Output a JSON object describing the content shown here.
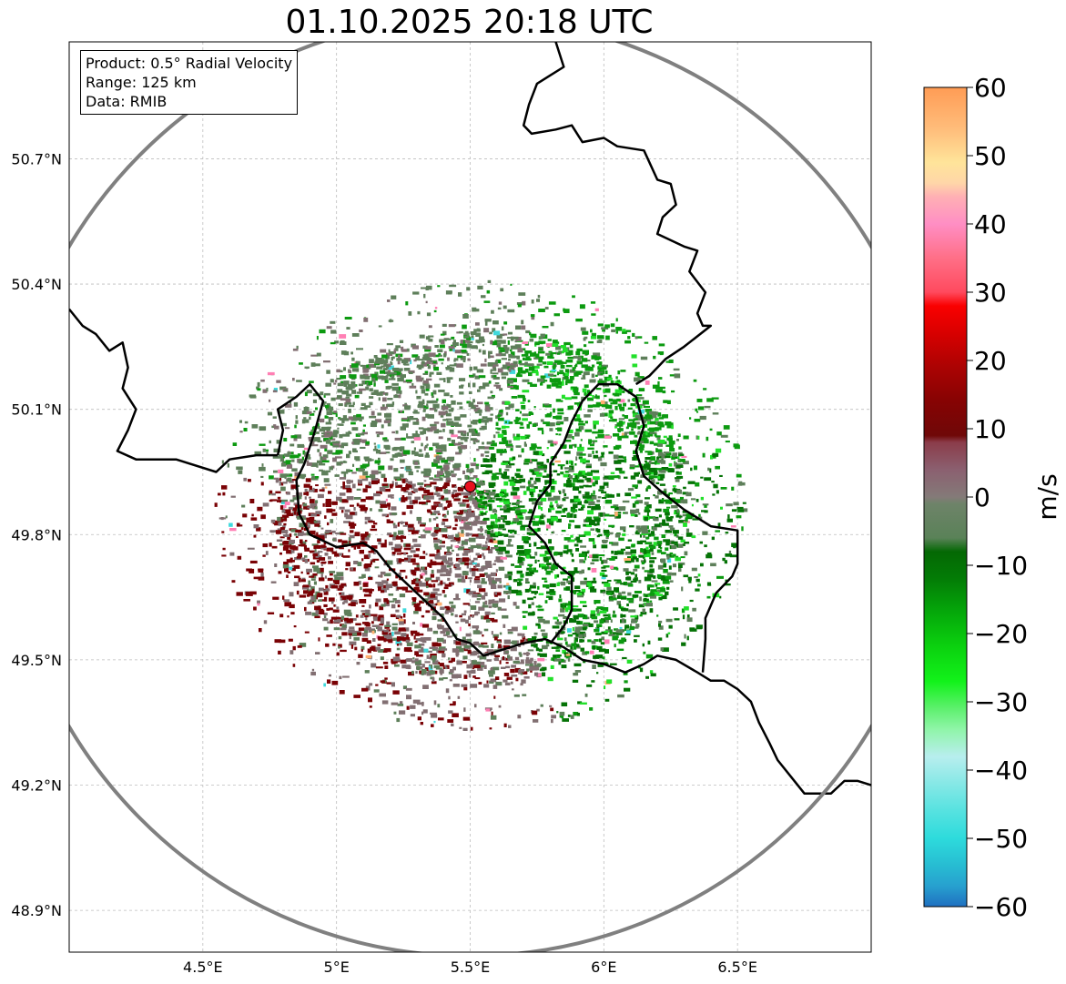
{
  "title": "01.10.2025 20:18 UTC",
  "info": {
    "product": "Product: 0.5° Radial Velocity",
    "range": "Range: 125 km",
    "data": "Data: RMIB"
  },
  "axes": {
    "lat_labels": [
      "50.7°N",
      "50.4°N",
      "50.1°N",
      "49.8°N",
      "49.5°N",
      "49.2°N",
      "48.9°N"
    ],
    "lat_values": [
      50.7,
      50.4,
      50.1,
      49.8,
      49.5,
      49.2,
      48.9
    ],
    "lon_labels": [
      "4.5°E",
      "5°E",
      "5.5°E",
      "6°E",
      "6.5°E"
    ],
    "lon_values": [
      4.5,
      5.0,
      5.5,
      6.0,
      6.5
    ],
    "lon_range": [
      4.0,
      7.0
    ],
    "lat_range": [
      48.8,
      50.98
    ]
  },
  "radar": {
    "lon": 5.5,
    "lat": 49.915,
    "range_km": 125,
    "marker_color": "#e8101e",
    "ring_color": "#808080"
  },
  "colorbar": {
    "unit": "m/s",
    "ticks": [
      "60",
      "50",
      "40",
      "30",
      "20",
      "10",
      "0",
      "−10",
      "−20",
      "−30",
      "−40",
      "−50",
      "−60"
    ],
    "tick_values": [
      60,
      50,
      40,
      30,
      20,
      10,
      0,
      -10,
      -20,
      -30,
      -40,
      -50,
      -60
    ],
    "range": [
      -60,
      60
    ],
    "stops": [
      {
        "v": -60,
        "c": "#1f6fc0"
      },
      {
        "v": -57,
        "c": "#27a0cf"
      },
      {
        "v": -54,
        "c": "#27bcd2"
      },
      {
        "v": -50,
        "c": "#2ddbdc"
      },
      {
        "v": -46,
        "c": "#56e2e0"
      },
      {
        "v": -42,
        "c": "#86e8e6"
      },
      {
        "v": -38,
        "c": "#b8eeee"
      },
      {
        "v": -34,
        "c": "#8ff5a8"
      },
      {
        "v": -31,
        "c": "#5ef06e"
      },
      {
        "v": -27,
        "c": "#12f21a"
      },
      {
        "v": -22,
        "c": "#0bd20f"
      },
      {
        "v": -17,
        "c": "#05a90a"
      },
      {
        "v": -12,
        "c": "#037c06"
      },
      {
        "v": -8,
        "c": "#046804"
      },
      {
        "v": -6,
        "c": "#5a8258"
      },
      {
        "v": -1,
        "c": "#6e8369"
      },
      {
        "v": 0,
        "c": "#847a78"
      },
      {
        "v": 4,
        "c": "#8b6070"
      },
      {
        "v": 8,
        "c": "#8b3c4a"
      },
      {
        "v": 9,
        "c": "#6f0808"
      },
      {
        "v": 14,
        "c": "#860303"
      },
      {
        "v": 19,
        "c": "#ab0303"
      },
      {
        "v": 24,
        "c": "#d80000"
      },
      {
        "v": 28,
        "c": "#fa0000"
      },
      {
        "v": 30,
        "c": "#ff4a5e"
      },
      {
        "v": 35,
        "c": "#ff6f87"
      },
      {
        "v": 40,
        "c": "#ff8ec4"
      },
      {
        "v": 44,
        "c": "#ffb0b4"
      },
      {
        "v": 46,
        "c": "#ffd6a8"
      },
      {
        "v": 49,
        "c": "#ffe49a"
      },
      {
        "v": 54,
        "c": "#ffbc7a"
      },
      {
        "v": 60,
        "c": "#ff9c55"
      }
    ]
  },
  "echo_colors": {
    "grey_green": "#5e7f5a",
    "grey_mauve": "#826f72",
    "dark_red": "#7a0205",
    "green": "#0c9a10",
    "dark_green": "#057306",
    "bright_green": "#22e02a",
    "pink": "#ff7fb4",
    "cyan": "#3fd9dc",
    "orange": "#ffb070"
  },
  "borders": {
    "color": "#000000",
    "lines": [
      [
        [
          4.0,
          50.34
        ],
        [
          4.05,
          50.3
        ],
        [
          4.1,
          50.28
        ],
        [
          4.15,
          50.24
        ],
        [
          4.2,
          50.26
        ],
        [
          4.22,
          50.2
        ],
        [
          4.2,
          50.15
        ],
        [
          4.25,
          50.1
        ],
        [
          4.22,
          50.05
        ],
        [
          4.18,
          50.0
        ],
        [
          4.25,
          49.98
        ],
        [
          4.4,
          49.98
        ],
        [
          4.55,
          49.95
        ],
        [
          4.6,
          49.98
        ],
        [
          4.7,
          49.99
        ],
        [
          4.78,
          49.99
        ]
      ],
      [
        [
          4.78,
          49.99
        ],
        [
          4.8,
          50.05
        ],
        [
          4.78,
          50.1
        ],
        [
          4.85,
          50.13
        ],
        [
          4.9,
          50.16
        ],
        [
          4.95,
          50.12
        ],
        [
          4.92,
          50.05
        ],
        [
          4.88,
          49.97
        ],
        [
          4.85,
          49.93
        ],
        [
          4.86,
          49.85
        ],
        [
          4.9,
          49.8
        ],
        [
          5.0,
          49.77
        ],
        [
          5.1,
          49.78
        ],
        [
          5.15,
          49.76
        ],
        [
          5.2,
          49.72
        ],
        [
          5.25,
          49.69
        ],
        [
          5.3,
          49.66
        ],
        [
          5.35,
          49.63
        ],
        [
          5.4,
          49.6
        ],
        [
          5.45,
          49.55
        ],
        [
          5.5,
          49.54
        ],
        [
          5.55,
          49.51
        ],
        [
          5.6,
          49.52
        ],
        [
          5.65,
          49.53
        ],
        [
          5.7,
          49.54
        ],
        [
          5.78,
          49.55
        ],
        [
          5.85,
          49.53
        ],
        [
          5.92,
          49.5
        ],
        [
          6.0,
          49.49
        ],
        [
          6.08,
          49.47
        ],
        [
          6.15,
          49.49
        ],
        [
          6.2,
          49.51
        ],
        [
          6.27,
          49.5
        ],
        [
          6.35,
          49.47
        ],
        [
          6.4,
          49.45
        ],
        [
          6.45,
          49.45
        ],
        [
          6.5,
          49.43
        ],
        [
          6.55,
          49.4
        ],
        [
          6.58,
          49.35
        ],
        [
          6.62,
          49.3
        ],
        [
          6.65,
          49.26
        ],
        [
          6.7,
          49.22
        ],
        [
          6.75,
          49.18
        ],
        [
          6.85,
          49.18
        ],
        [
          6.9,
          49.21
        ],
        [
          6.95,
          49.21
        ],
        [
          7.0,
          49.2
        ]
      ],
      [
        [
          5.8,
          49.54
        ],
        [
          5.85,
          49.58
        ],
        [
          5.88,
          49.62
        ],
        [
          5.88,
          49.7
        ],
        [
          5.82,
          49.73
        ],
        [
          5.78,
          49.78
        ],
        [
          5.72,
          49.82
        ],
        [
          5.75,
          49.88
        ],
        [
          5.8,
          49.92
        ],
        [
          5.8,
          49.97
        ],
        [
          5.85,
          50.02
        ],
        [
          5.88,
          50.07
        ],
        [
          5.92,
          50.12
        ],
        [
          5.98,
          50.16
        ],
        [
          6.05,
          50.16
        ],
        [
          6.12,
          50.13
        ],
        [
          6.15,
          50.06
        ],
        [
          6.12,
          50.0
        ],
        [
          6.15,
          49.94
        ],
        [
          6.22,
          49.9
        ],
        [
          6.3,
          49.86
        ],
        [
          6.4,
          49.82
        ],
        [
          6.5,
          49.81
        ],
        [
          6.5,
          49.73
        ],
        [
          6.48,
          49.7
        ],
        [
          6.42,
          49.66
        ],
        [
          6.38,
          49.6
        ],
        [
          6.38,
          49.55
        ],
        [
          6.37,
          49.47
        ]
      ],
      [
        [
          5.82,
          50.98
        ],
        [
          5.85,
          50.92
        ],
        [
          5.8,
          50.9
        ],
        [
          5.75,
          50.88
        ],
        [
          5.72,
          50.83
        ],
        [
          5.7,
          50.78
        ],
        [
          5.73,
          50.76
        ],
        [
          5.82,
          50.77
        ],
        [
          5.88,
          50.78
        ],
        [
          5.92,
          50.74
        ],
        [
          6.0,
          50.75
        ],
        [
          6.05,
          50.73
        ],
        [
          6.15,
          50.72
        ],
        [
          6.2,
          50.65
        ],
        [
          6.25,
          50.64
        ],
        [
          6.27,
          50.59
        ],
        [
          6.22,
          50.56
        ],
        [
          6.2,
          50.52
        ],
        [
          6.3,
          50.49
        ],
        [
          6.35,
          50.48
        ],
        [
          6.32,
          50.43
        ],
        [
          6.38,
          50.38
        ],
        [
          6.35,
          50.33
        ],
        [
          6.37,
          50.3
        ],
        [
          6.4,
          50.3
        ],
        [
          6.3,
          50.25
        ],
        [
          6.23,
          50.22
        ],
        [
          6.17,
          50.18
        ],
        [
          6.12,
          50.16
        ]
      ]
    ]
  }
}
